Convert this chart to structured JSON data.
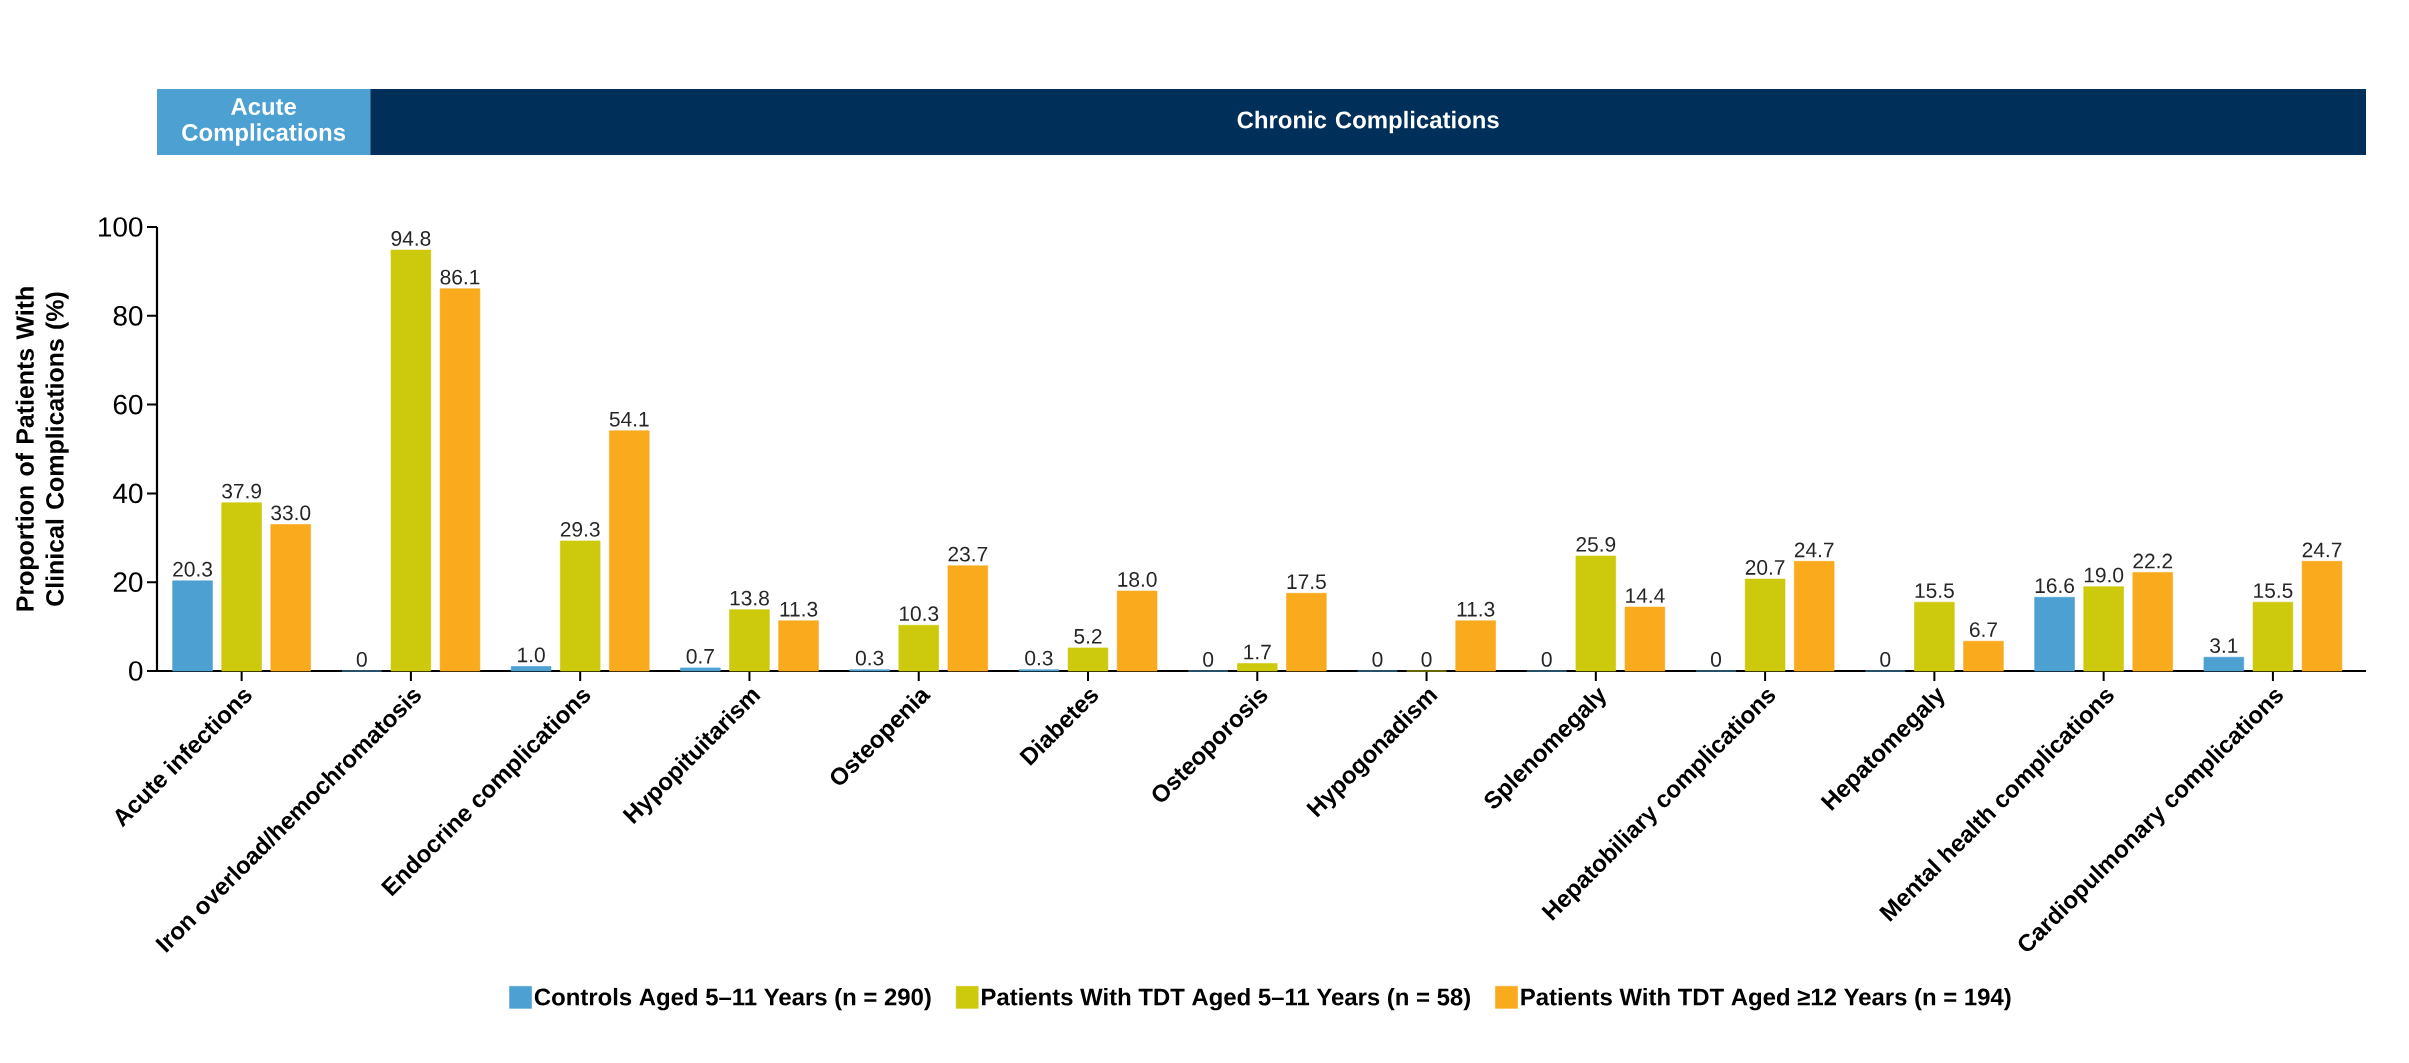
{
  "chart_data": {
    "type": "bar",
    "ylabel": "Proportion of Patients With Clinical Complications (%)",
    "annotations": [
      "Acute Complications",
      "Chronic Complications"
    ],
    "categories": [
      "Acute infections",
      "Iron overload/hemochromatosis",
      "Endocrine complications",
      "Hypopituitarism",
      "Osteopenia",
      "Diabetes",
      "Osteoporosis",
      "Hypogonadism",
      "Splenomegaly",
      "Hepatobiliary complications",
      "Hepatomegaly",
      "Mental health complications",
      "Cardiopulmonary complications"
    ],
    "series": [
      {
        "name": "Controls Aged 5–11 Years (n = 290)",
        "color": "#4da1d2",
        "values": [
          20.3,
          0,
          1.0,
          0.7,
          0.3,
          0.3,
          0,
          0,
          0,
          0,
          0,
          16.6,
          3.1
        ],
        "value_labels": [
          "20.3",
          "0",
          "1.0",
          "0.7",
          "0.3",
          "0.3",
          "0",
          "0",
          "0",
          "0",
          "0",
          "16.6",
          "3.1"
        ]
      },
      {
        "name": "Patients With TDT Aged 5–11 Years (n = 58)",
        "color": "#cdc90c",
        "values": [
          37.9,
          94.8,
          29.3,
          13.8,
          10.3,
          5.2,
          1.7,
          0,
          25.9,
          20.7,
          15.5,
          19.0,
          15.5
        ],
        "value_labels": [
          "37.9",
          "94.8",
          "29.3",
          "13.8",
          "10.3",
          "5.2",
          "1.7",
          "0",
          "25.9",
          "20.7",
          "15.5",
          "19.0",
          "15.5"
        ]
      },
      {
        "name": "Patients With TDT Aged ≥12 Years (n = 194)",
        "color": "#f9aa1d",
        "values": [
          33.0,
          86.1,
          54.1,
          11.3,
          23.7,
          18.0,
          17.5,
          11.3,
          14.4,
          24.7,
          6.7,
          22.2,
          24.7
        ],
        "value_labels": [
          "33.0",
          "86.1",
          "54.1",
          "11.3",
          "23.7",
          "18.0",
          "17.5",
          "11.3",
          "14.4",
          "24.7",
          "6.7",
          "22.2",
          "24.7"
        ]
      }
    ],
    "ylim": [
      0,
      100
    ],
    "yticks": [
      0,
      20,
      40,
      60,
      80,
      100
    ],
    "legend": "bottom"
  }
}
